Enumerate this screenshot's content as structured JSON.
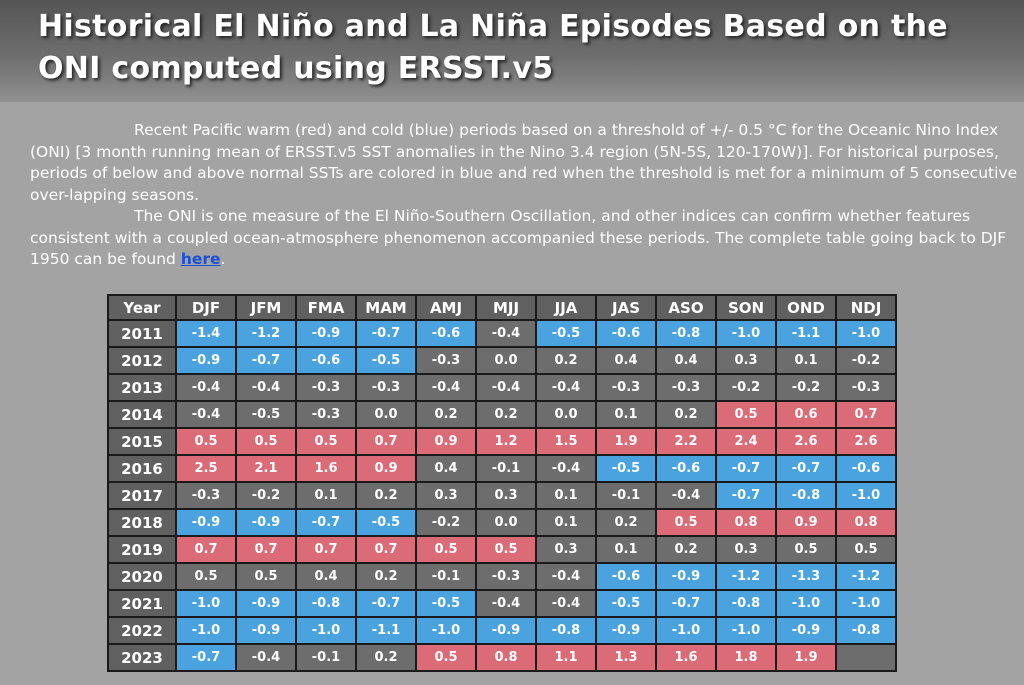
{
  "title_line1": "Historical El Niño and La Niña Episodes Based on the",
  "title_line2": "ONI computed using ERSST.v5",
  "intro": {
    "p1": "Recent Pacific warm (red) and cold (blue) periods based on a threshold of +/- 0.5 °C for the Oceanic Nino Index (ONI) [3 month running mean of ERSST.v5 SST anomalies in the Nino 3.4 region (5N-5S, 120-170W)]. For historical purposes, periods of below and above normal SSTs are colored in blue and red when the threshold is met for a minimum of 5 consecutive over-lapping seasons.",
    "p2": "The ONI is one measure of the El Niño-Southern Oscillation, and other indices can confirm whether features consistent with a coupled ocean-atmosphere phenomenon accompanied these periods. The complete table going back to DJF 1950 can be found ",
    "link_text": "here",
    "trailing": "."
  },
  "colors": {
    "warm": "#dc6b78",
    "cold": "#4aa3df",
    "neutral": "#6d6d6d"
  },
  "table": {
    "headers": [
      "Year",
      "DJF",
      "JFM",
      "FMA",
      "MAM",
      "AMJ",
      "MJJ",
      "JJA",
      "JAS",
      "ASO",
      "SON",
      "OND",
      "NDJ"
    ],
    "rows": [
      {
        "year": "2011",
        "cells": [
          [
            "-1.4",
            "c"
          ],
          [
            "-1.2",
            "c"
          ],
          [
            "-0.9",
            "c"
          ],
          [
            "-0.7",
            "c"
          ],
          [
            "-0.6",
            "c"
          ],
          [
            "-0.4",
            "n"
          ],
          [
            "-0.5",
            "c"
          ],
          [
            "-0.6",
            "c"
          ],
          [
            "-0.8",
            "c"
          ],
          [
            "-1.0",
            "c"
          ],
          [
            "-1.1",
            "c"
          ],
          [
            "-1.0",
            "c"
          ]
        ]
      },
      {
        "year": "2012",
        "cells": [
          [
            "-0.9",
            "c"
          ],
          [
            "-0.7",
            "c"
          ],
          [
            "-0.6",
            "c"
          ],
          [
            "-0.5",
            "c"
          ],
          [
            "-0.3",
            "n"
          ],
          [
            "0.0",
            "n"
          ],
          [
            "0.2",
            "n"
          ],
          [
            "0.4",
            "n"
          ],
          [
            "0.4",
            "n"
          ],
          [
            "0.3",
            "n"
          ],
          [
            "0.1",
            "n"
          ],
          [
            "-0.2",
            "n"
          ]
        ]
      },
      {
        "year": "2013",
        "cells": [
          [
            "-0.4",
            "n"
          ],
          [
            "-0.4",
            "n"
          ],
          [
            "-0.3",
            "n"
          ],
          [
            "-0.3",
            "n"
          ],
          [
            "-0.4",
            "n"
          ],
          [
            "-0.4",
            "n"
          ],
          [
            "-0.4",
            "n"
          ],
          [
            "-0.3",
            "n"
          ],
          [
            "-0.3",
            "n"
          ],
          [
            "-0.2",
            "n"
          ],
          [
            "-0.2",
            "n"
          ],
          [
            "-0.3",
            "n"
          ]
        ]
      },
      {
        "year": "2014",
        "cells": [
          [
            "-0.4",
            "n"
          ],
          [
            "-0.5",
            "n"
          ],
          [
            "-0.3",
            "n"
          ],
          [
            "0.0",
            "n"
          ],
          [
            "0.2",
            "n"
          ],
          [
            "0.2",
            "n"
          ],
          [
            "0.0",
            "n"
          ],
          [
            "0.1",
            "n"
          ],
          [
            "0.2",
            "n"
          ],
          [
            "0.5",
            "w"
          ],
          [
            "0.6",
            "w"
          ],
          [
            "0.7",
            "w"
          ]
        ]
      },
      {
        "year": "2015",
        "cells": [
          [
            "0.5",
            "w"
          ],
          [
            "0.5",
            "w"
          ],
          [
            "0.5",
            "w"
          ],
          [
            "0.7",
            "w"
          ],
          [
            "0.9",
            "w"
          ],
          [
            "1.2",
            "w"
          ],
          [
            "1.5",
            "w"
          ],
          [
            "1.9",
            "w"
          ],
          [
            "2.2",
            "w"
          ],
          [
            "2.4",
            "w"
          ],
          [
            "2.6",
            "w"
          ],
          [
            "2.6",
            "w"
          ]
        ]
      },
      {
        "year": "2016",
        "cells": [
          [
            "2.5",
            "w"
          ],
          [
            "2.1",
            "w"
          ],
          [
            "1.6",
            "w"
          ],
          [
            "0.9",
            "w"
          ],
          [
            "0.4",
            "n"
          ],
          [
            "-0.1",
            "n"
          ],
          [
            "-0.4",
            "n"
          ],
          [
            "-0.5",
            "c"
          ],
          [
            "-0.6",
            "c"
          ],
          [
            "-0.7",
            "c"
          ],
          [
            "-0.7",
            "c"
          ],
          [
            "-0.6",
            "c"
          ]
        ]
      },
      {
        "year": "2017",
        "cells": [
          [
            "-0.3",
            "n"
          ],
          [
            "-0.2",
            "n"
          ],
          [
            "0.1",
            "n"
          ],
          [
            "0.2",
            "n"
          ],
          [
            "0.3",
            "n"
          ],
          [
            "0.3",
            "n"
          ],
          [
            "0.1",
            "n"
          ],
          [
            "-0.1",
            "n"
          ],
          [
            "-0.4",
            "n"
          ],
          [
            "-0.7",
            "c"
          ],
          [
            "-0.8",
            "c"
          ],
          [
            "-1.0",
            "c"
          ]
        ]
      },
      {
        "year": "2018",
        "cells": [
          [
            "-0.9",
            "c"
          ],
          [
            "-0.9",
            "c"
          ],
          [
            "-0.7",
            "c"
          ],
          [
            "-0.5",
            "c"
          ],
          [
            "-0.2",
            "n"
          ],
          [
            "0.0",
            "n"
          ],
          [
            "0.1",
            "n"
          ],
          [
            "0.2",
            "n"
          ],
          [
            "0.5",
            "w"
          ],
          [
            "0.8",
            "w"
          ],
          [
            "0.9",
            "w"
          ],
          [
            "0.8",
            "w"
          ]
        ]
      },
      {
        "year": "2019",
        "cells": [
          [
            "0.7",
            "w"
          ],
          [
            "0.7",
            "w"
          ],
          [
            "0.7",
            "w"
          ],
          [
            "0.7",
            "w"
          ],
          [
            "0.5",
            "w"
          ],
          [
            "0.5",
            "w"
          ],
          [
            "0.3",
            "n"
          ],
          [
            "0.1",
            "n"
          ],
          [
            "0.2",
            "n"
          ],
          [
            "0.3",
            "n"
          ],
          [
            "0.5",
            "n"
          ],
          [
            "0.5",
            "n"
          ]
        ]
      },
      {
        "year": "2020",
        "cells": [
          [
            "0.5",
            "n"
          ],
          [
            "0.5",
            "n"
          ],
          [
            "0.4",
            "n"
          ],
          [
            "0.2",
            "n"
          ],
          [
            "-0.1",
            "n"
          ],
          [
            "-0.3",
            "n"
          ],
          [
            "-0.4",
            "n"
          ],
          [
            "-0.6",
            "c"
          ],
          [
            "-0.9",
            "c"
          ],
          [
            "-1.2",
            "c"
          ],
          [
            "-1.3",
            "c"
          ],
          [
            "-1.2",
            "c"
          ]
        ]
      },
      {
        "year": "2021",
        "cells": [
          [
            "-1.0",
            "c"
          ],
          [
            "-0.9",
            "c"
          ],
          [
            "-0.8",
            "c"
          ],
          [
            "-0.7",
            "c"
          ],
          [
            "-0.5",
            "c"
          ],
          [
            "-0.4",
            "n"
          ],
          [
            "-0.4",
            "n"
          ],
          [
            "-0.5",
            "c"
          ],
          [
            "-0.7",
            "c"
          ],
          [
            "-0.8",
            "c"
          ],
          [
            "-1.0",
            "c"
          ],
          [
            "-1.0",
            "c"
          ]
        ]
      },
      {
        "year": "2022",
        "cells": [
          [
            "-1.0",
            "c"
          ],
          [
            "-0.9",
            "c"
          ],
          [
            "-1.0",
            "c"
          ],
          [
            "-1.1",
            "c"
          ],
          [
            "-1.0",
            "c"
          ],
          [
            "-0.9",
            "c"
          ],
          [
            "-0.8",
            "c"
          ],
          [
            "-0.9",
            "c"
          ],
          [
            "-1.0",
            "c"
          ],
          [
            "-1.0",
            "c"
          ],
          [
            "-0.9",
            "c"
          ],
          [
            "-0.8",
            "c"
          ]
        ]
      },
      {
        "year": "2023",
        "cells": [
          [
            "-0.7",
            "c"
          ],
          [
            "-0.4",
            "n"
          ],
          [
            "-0.1",
            "n"
          ],
          [
            "0.2",
            "n"
          ],
          [
            "0.5",
            "w"
          ],
          [
            "0.8",
            "w"
          ],
          [
            "1.1",
            "w"
          ],
          [
            "1.3",
            "w"
          ],
          [
            "1.6",
            "w"
          ],
          [
            "1.8",
            "w"
          ],
          [
            "1.9",
            "w"
          ],
          [
            "",
            "n"
          ]
        ]
      }
    ]
  }
}
